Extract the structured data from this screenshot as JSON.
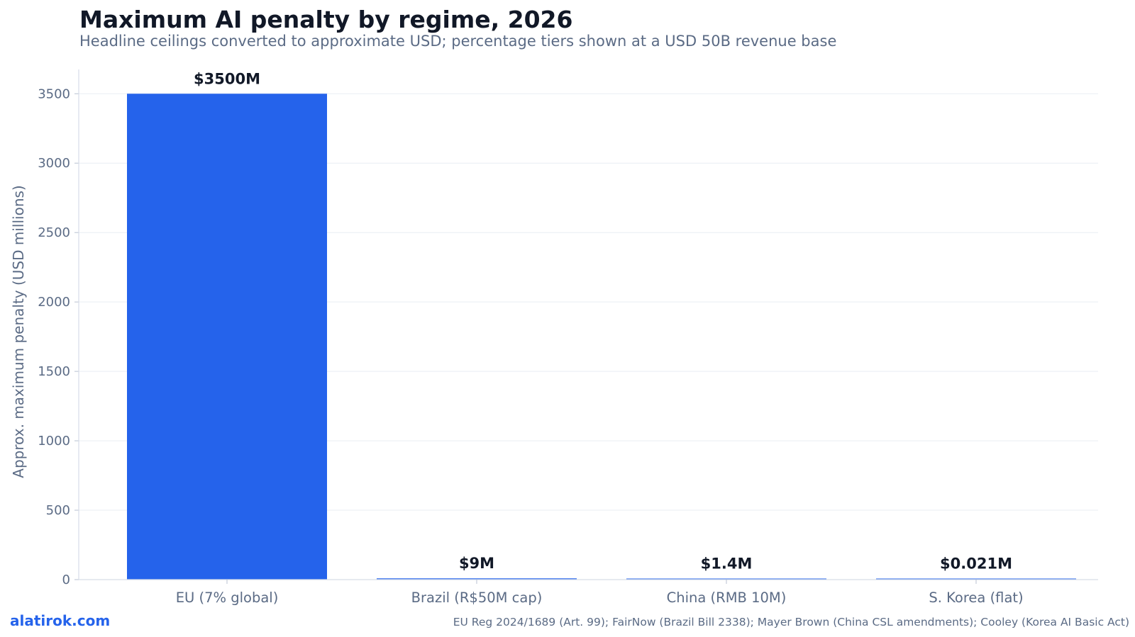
{
  "title": "Maximum AI penalty by regime, 2026",
  "subtitle": "Headline ceilings converted to approximate USD; percentage tiers shown at a USD 50B revenue base",
  "footer": {
    "brand": "alatirok.com",
    "source": "EU Reg 2024/1689 (Art. 99); FairNow (Brazil Bill 2338); Mayer Brown (China CSL amendments); Cooley (Korea AI Basic Act)"
  },
  "colors": {
    "bar": "#2563eb",
    "grid": "#e9edf3",
    "axis": "#d7dde8"
  },
  "chart_data": {
    "type": "bar",
    "categories": [
      "EU (7% global)",
      "Brazil (R$50M cap)",
      "China (RMB 10M)",
      "S. Korea (flat)"
    ],
    "values": [
      3500,
      9,
      1.4,
      0.021
    ],
    "data_labels": [
      "$3500M",
      "$9M",
      "$1.4M",
      "$0.021M"
    ],
    "ylabel": "Approx. maximum penalty (USD millions)",
    "ylim": [
      0,
      3675
    ],
    "yticks": [
      0,
      500,
      1000,
      1500,
      2000,
      2500,
      3000,
      3500
    ],
    "grid": true,
    "legend": "none"
  }
}
